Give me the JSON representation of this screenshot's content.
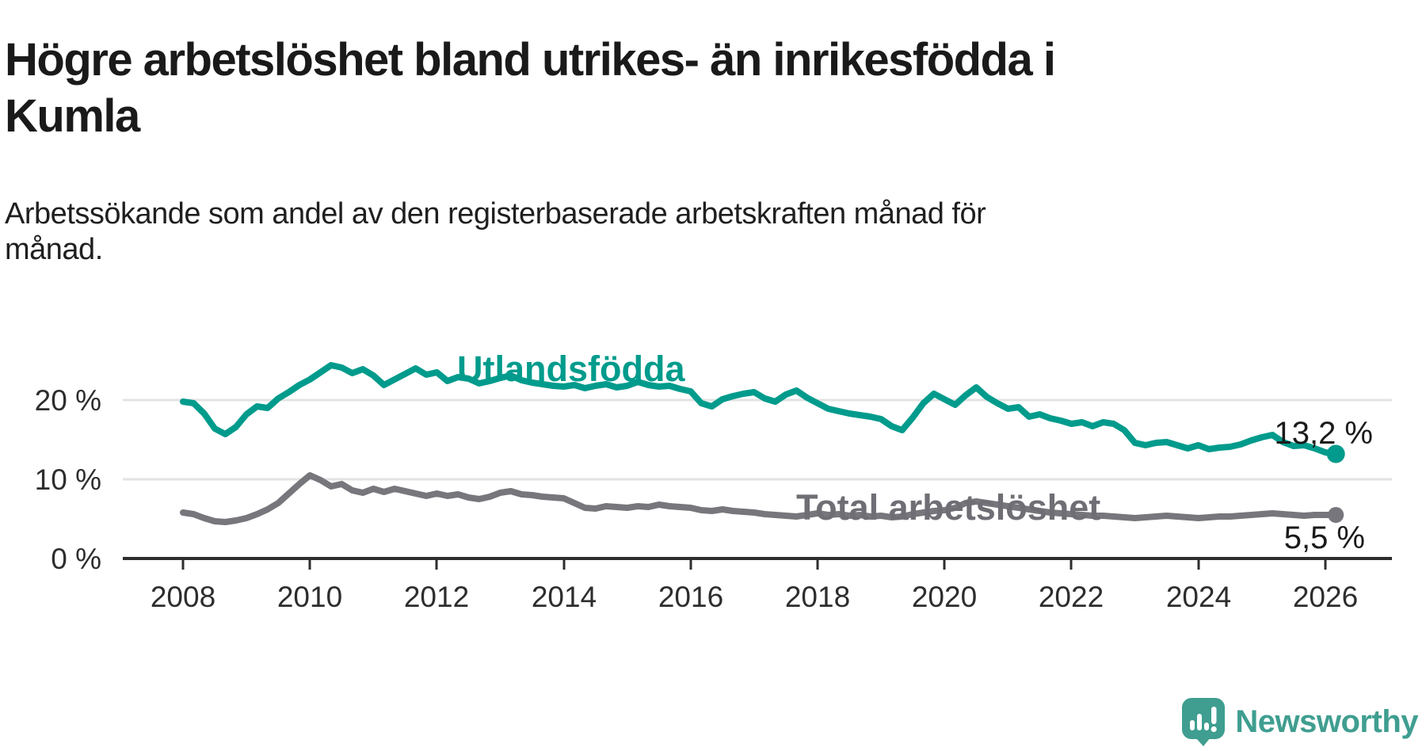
{
  "header": {
    "title_lines": [
      "Högre arbetslöshet bland utrikes- än inrikesfödda i",
      "Kumla"
    ],
    "subtitle_lines": [
      "Arbetssökande som andel av den registerbaserade arbetskraften månad för",
      "månad."
    ]
  },
  "footer": {
    "brand": "Newsworthy"
  },
  "colors": {
    "accent_teal": "#009b8c",
    "line_gray": "#77767c",
    "logo_teal": "#3f9e90",
    "grid": "#e3e3e3",
    "axis": "#2e2e2e"
  },
  "chart_data": {
    "type": "line",
    "title": "Högre arbetslöshet bland utrikes- än inrikesfödda i Kumla",
    "subtitle": "Arbetssökande som andel av den registerbaserade arbetskraften månad för månad.",
    "grid": "horizontal",
    "legend_position": "inline-labels",
    "x_axis": {
      "range": [
        2007.05,
        2027.05
      ],
      "tick_values": [
        2008,
        2010,
        2012,
        2014,
        2016,
        2018,
        2020,
        2022,
        2024,
        2026
      ],
      "tick_labels": [
        "2008",
        "2010",
        "2012",
        "2014",
        "2016",
        "2018",
        "2020",
        "2022",
        "2024",
        "2026"
      ]
    },
    "y_axis": {
      "unit": "%",
      "range": [
        0,
        26.5
      ],
      "tick_values": [
        0,
        10,
        20
      ],
      "tick_labels": [
        "0 %",
        "10 %",
        "20 %"
      ]
    },
    "series": [
      {
        "name": "Total arbetslöshet",
        "color": "#77767c",
        "label_color": "#6f6e75",
        "end_label": "5,5 %",
        "end_value": 5.5,
        "x_start": 2008.0,
        "x_step_years": 0.1666667,
        "values": [
          5.8,
          5.6,
          5.1,
          4.7,
          4.6,
          4.8,
          5.1,
          5.6,
          6.2,
          7.0,
          8.2,
          9.4,
          10.5,
          9.9,
          9.1,
          9.4,
          8.6,
          8.3,
          8.8,
          8.4,
          8.8,
          8.5,
          8.2,
          7.9,
          8.2,
          7.9,
          8.1,
          7.7,
          7.5,
          7.8,
          8.3,
          8.5,
          8.1,
          8.0,
          7.8,
          7.7,
          7.6,
          7.0,
          6.4,
          6.3,
          6.6,
          6.5,
          6.4,
          6.6,
          6.5,
          6.8,
          6.6,
          6.5,
          6.4,
          6.1,
          6.0,
          6.2,
          6.0,
          5.9,
          5.8,
          5.6,
          5.5,
          5.4,
          5.3,
          5.5,
          5.7,
          5.5,
          5.6,
          5.4,
          5.5,
          5.3,
          5.4,
          5.2,
          5.3,
          5.6,
          5.8,
          6.0,
          6.1,
          6.4,
          7.0,
          7.2,
          7.0,
          6.8,
          6.6,
          6.4,
          6.2,
          6.0,
          5.8,
          5.7,
          5.6,
          5.5,
          5.4,
          5.4,
          5.3,
          5.2,
          5.1,
          5.2,
          5.3,
          5.4,
          5.3,
          5.2,
          5.1,
          5.2,
          5.3,
          5.3,
          5.4,
          5.5,
          5.6,
          5.7,
          5.6,
          5.5,
          5.4,
          5.5,
          5.5,
          5.5
        ]
      },
      {
        "name": "Utlandsfödda",
        "color": "#009b8c",
        "label_color": "#009b8c",
        "end_label": "13,2 %",
        "end_value": 13.2,
        "x_start": 2008.0,
        "x_step_years": 0.1666667,
        "values": [
          19.8,
          19.6,
          18.3,
          16.4,
          15.7,
          16.6,
          18.2,
          19.2,
          19.0,
          20.2,
          21.0,
          21.9,
          22.6,
          23.5,
          24.4,
          24.1,
          23.4,
          23.9,
          23.1,
          21.9,
          22.6,
          23.3,
          24.0,
          23.2,
          23.5,
          22.4,
          22.9,
          22.7,
          22.1,
          22.4,
          22.8,
          23.1,
          22.5,
          22.2,
          22.0,
          21.8,
          21.7,
          21.9,
          21.5,
          21.8,
          22.0,
          21.6,
          21.8,
          22.3,
          21.9,
          21.7,
          21.8,
          21.4,
          21.1,
          19.6,
          19.2,
          20.1,
          20.5,
          20.8,
          21.0,
          20.2,
          19.8,
          20.7,
          21.2,
          20.3,
          19.6,
          18.9,
          18.6,
          18.3,
          18.1,
          17.9,
          17.6,
          16.7,
          16.2,
          17.8,
          19.6,
          20.8,
          20.1,
          19.4,
          20.6,
          21.6,
          20.4,
          19.6,
          18.9,
          19.1,
          17.9,
          18.2,
          17.7,
          17.4,
          17.0,
          17.2,
          16.7,
          17.2,
          17.0,
          16.2,
          14.6,
          14.3,
          14.6,
          14.7,
          14.3,
          13.9,
          14.3,
          13.8,
          14.0,
          14.1,
          14.4,
          14.9,
          15.3,
          15.6,
          14.7,
          14.2,
          14.3,
          13.9,
          13.4,
          13.2
        ]
      }
    ]
  }
}
